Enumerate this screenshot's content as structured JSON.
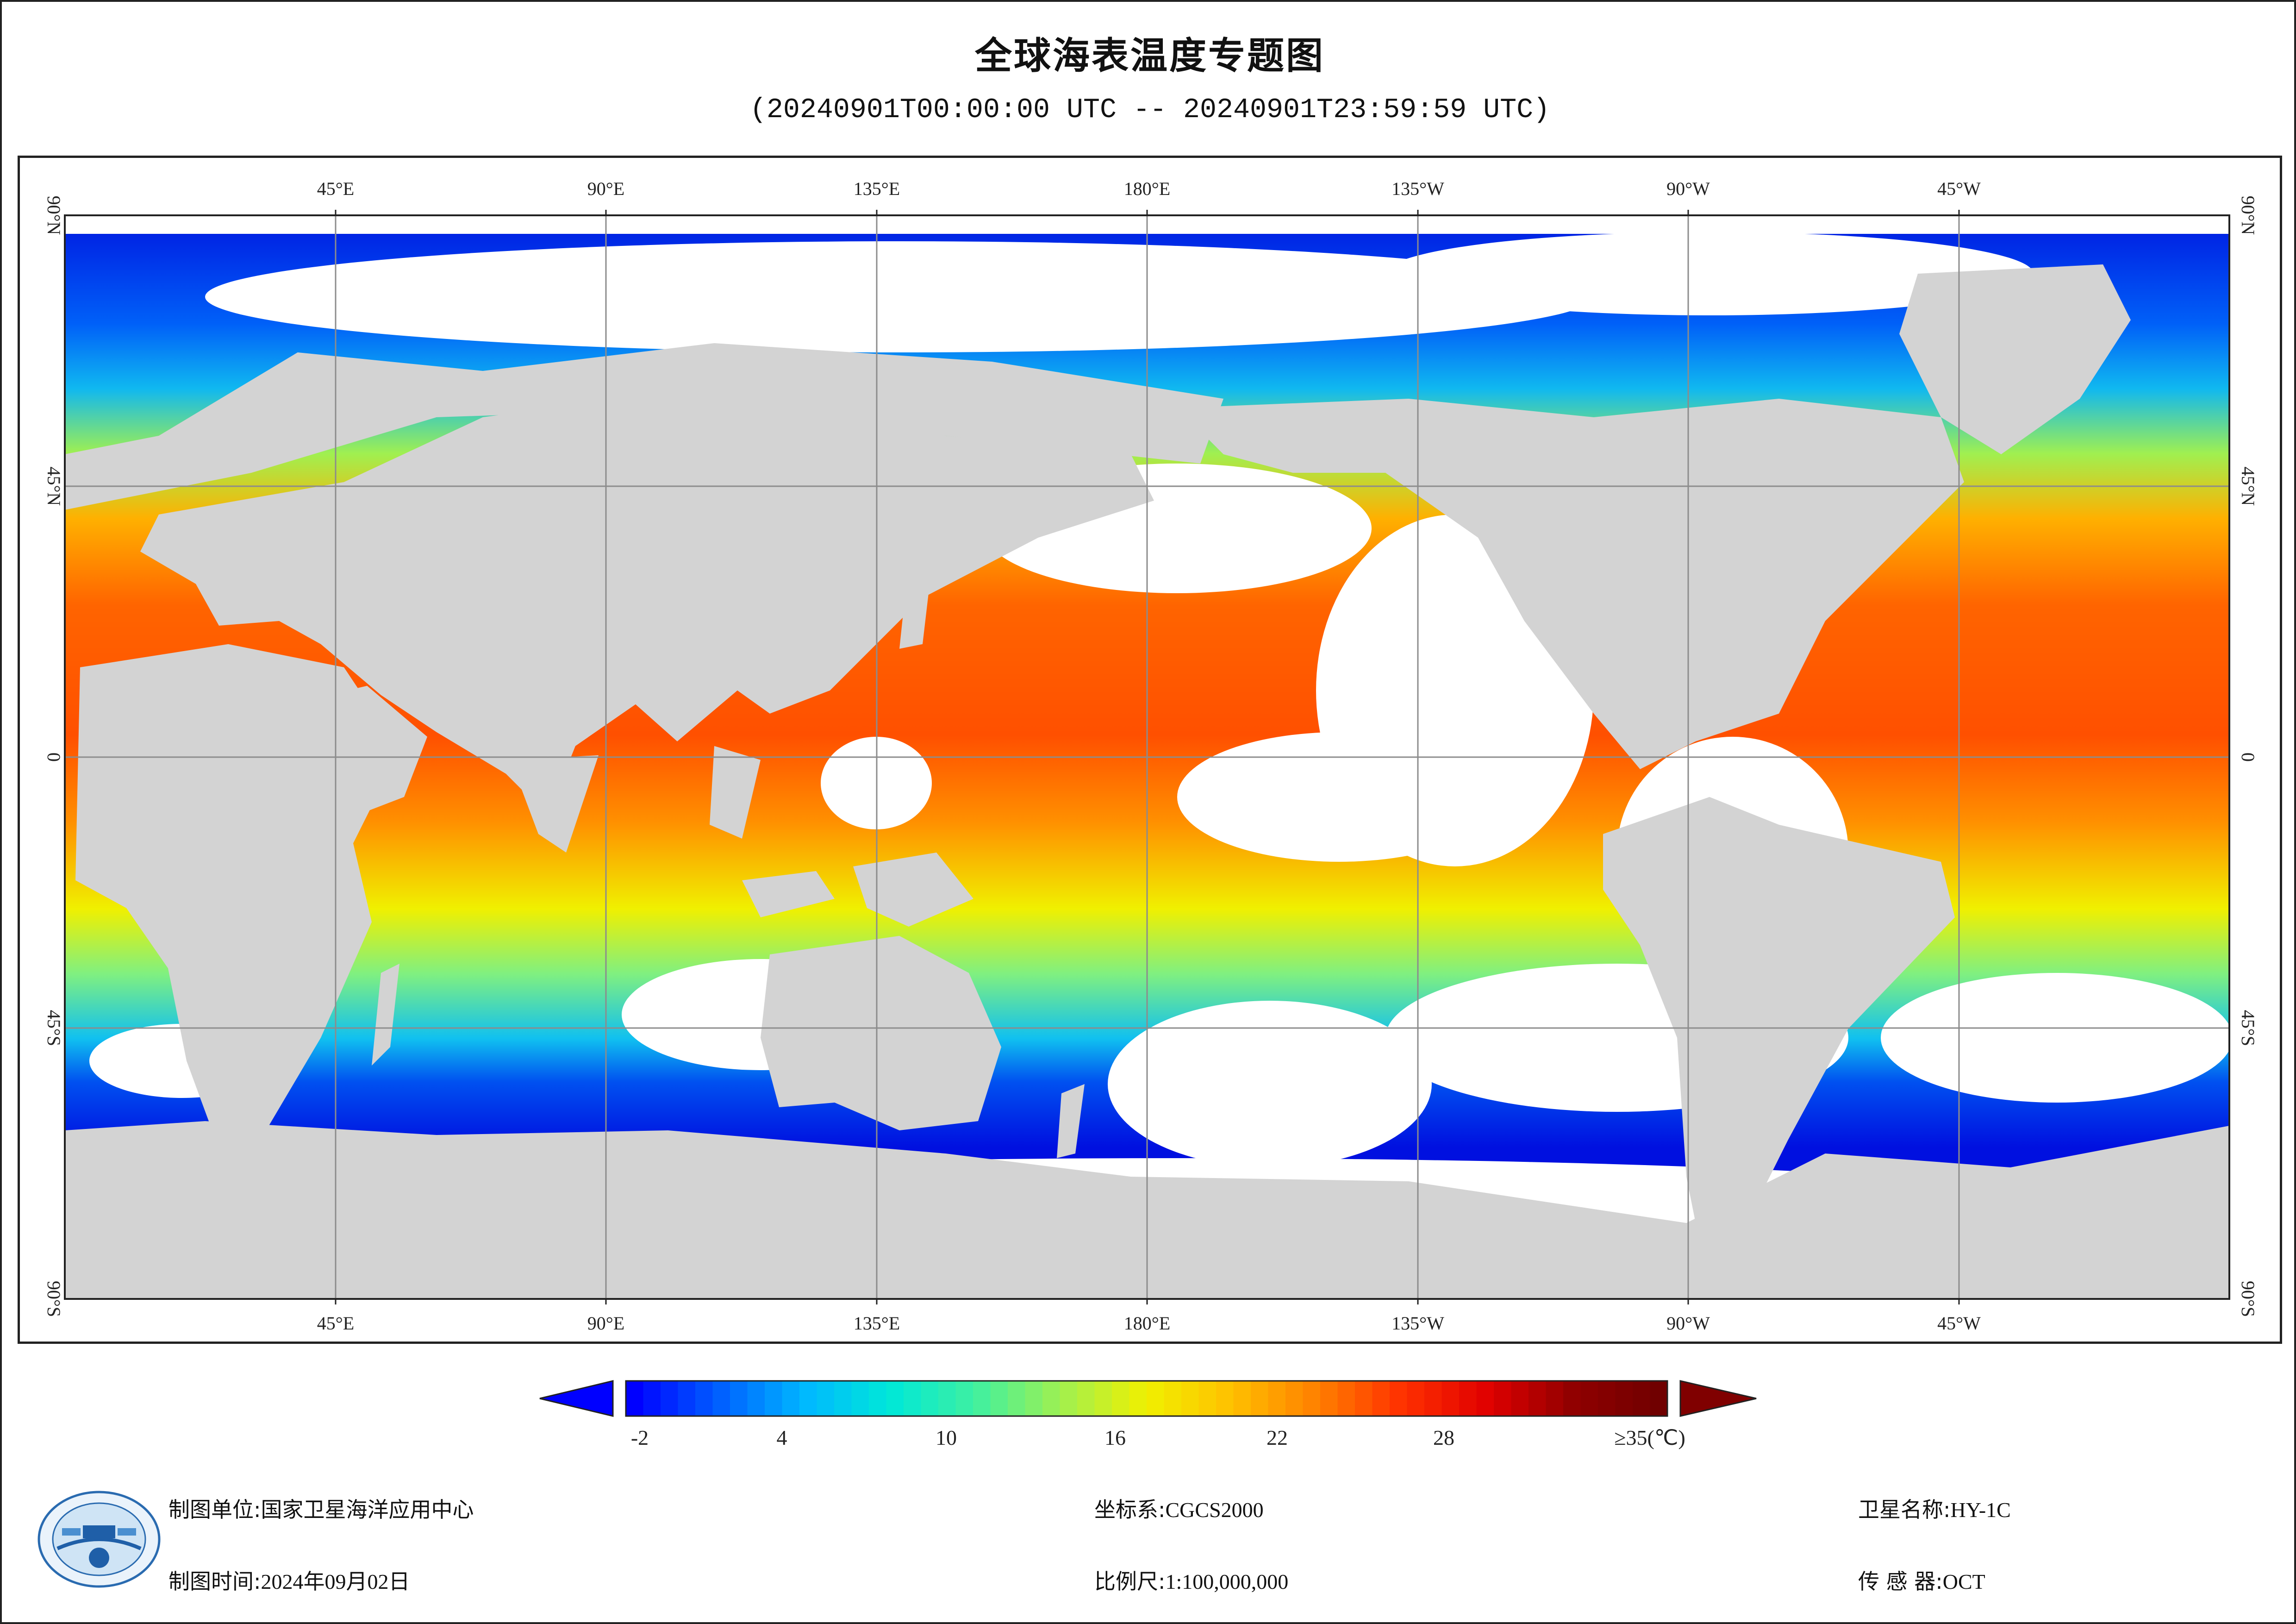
{
  "title": "全球海表温度专题图",
  "subtitle": "(20240901T00:00:00 UTC -- 20240901T23:59:59 UTC)",
  "map": {
    "lon_labels_top": [
      "45°E",
      "90°E",
      "135°E",
      "180°E",
      "135°W",
      "90°W",
      "45°W"
    ],
    "lon_labels_bottom": [
      "45°E",
      "90°E",
      "135°E",
      "180°E",
      "135°W",
      "90°W",
      "45°W"
    ],
    "lat_labels": [
      "90°N",
      "45°N",
      "0",
      "45°S",
      "90°S"
    ],
    "colors": {
      "land": "#d3d3d3",
      "cloud": "#ffffff",
      "grid": "#8c8c8c"
    }
  },
  "colorbar": {
    "tick_labels": [
      "-2",
      "4",
      "10",
      "16",
      "22",
      "28",
      "≥35(℃)"
    ],
    "colors": [
      "#0000ff",
      "#0060ff",
      "#00b8ff",
      "#00e8d8",
      "#40f0a0",
      "#a0f050",
      "#f0f000",
      "#ffc000",
      "#ff8000",
      "#ff3000",
      "#e00000",
      "#900000",
      "#700000"
    ]
  },
  "footer": {
    "org_label": "制图单位:",
    "org_value": "国家卫星海洋应用中心",
    "date_label": "制图时间:",
    "date_value": "2024年09月02日",
    "crs_label": "坐标系:",
    "crs_value": "CGCS2000",
    "scale_label": "比例尺:",
    "scale_value": "1:100,000,000",
    "satellite_label": "卫星名称:",
    "satellite_value": "HY-1C",
    "sensor_label": "传 感 器:",
    "sensor_value": "OCT"
  }
}
